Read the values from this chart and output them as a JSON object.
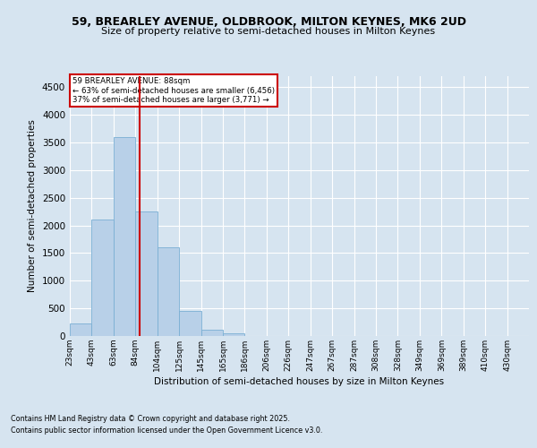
{
  "title_line1": "59, BREARLEY AVENUE, OLDBROOK, MILTON KEYNES, MK6 2UD",
  "title_line2": "Size of property relative to semi-detached houses in Milton Keynes",
  "xlabel": "Distribution of semi-detached houses by size in Milton Keynes",
  "ylabel": "Number of semi-detached properties",
  "categories": [
    "23sqm",
    "43sqm",
    "63sqm",
    "84sqm",
    "104sqm",
    "125sqm",
    "145sqm",
    "165sqm",
    "186sqm",
    "206sqm",
    "226sqm",
    "247sqm",
    "267sqm",
    "287sqm",
    "308sqm",
    "328sqm",
    "349sqm",
    "369sqm",
    "389sqm",
    "410sqm",
    "430sqm"
  ],
  "bar_values": [
    230,
    2100,
    3600,
    2250,
    1600,
    450,
    110,
    50,
    0,
    0,
    0,
    0,
    0,
    0,
    0,
    0,
    0,
    0,
    0,
    0,
    0
  ],
  "bar_color": "#b8d0e8",
  "bar_edge_color": "#7aafd4",
  "property_sqm": 88,
  "annotation_line1": "59 BREARLEY AVENUE: 88sqm",
  "annotation_line2": "← 63% of semi-detached houses are smaller (6,456)",
  "annotation_line3": "37% of semi-detached houses are larger (3,771) →",
  "vline_color": "#cc0000",
  "annotation_box_edgecolor": "#cc0000",
  "ylim_max": 4700,
  "yticks": [
    0,
    500,
    1000,
    1500,
    2000,
    2500,
    3000,
    3500,
    4000,
    4500
  ],
  "background_color": "#d6e4f0",
  "grid_color": "#ffffff",
  "footer_line1": "Contains HM Land Registry data © Crown copyright and database right 2025.",
  "footer_line2": "Contains public sector information licensed under the Open Government Licence v3.0."
}
